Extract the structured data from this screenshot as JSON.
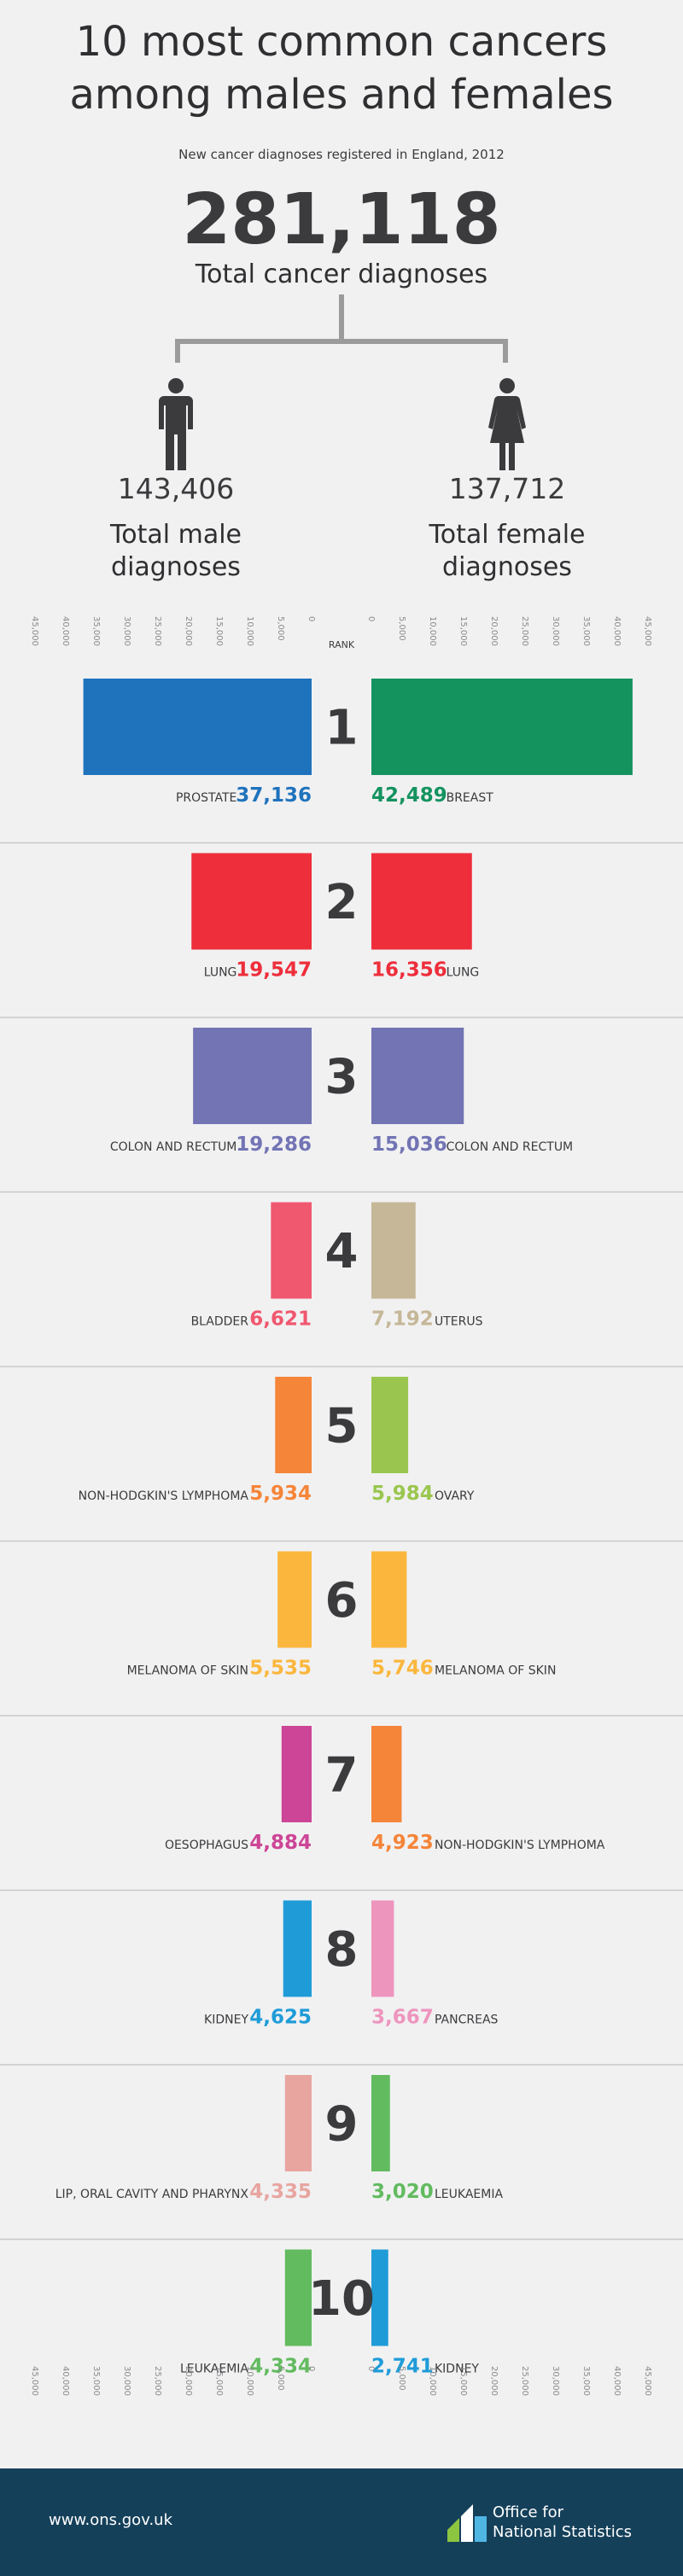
{
  "header": {
    "title_line1": "10 most common cancers",
    "title_line2": "among males and females",
    "subtitle": "New cancer diagnoses registered in England, 2012",
    "total_number": "281,118",
    "total_label": "Total cancer diagnoses"
  },
  "male": {
    "total_number": "143,406",
    "label_line1": "Total male",
    "label_line2": "diagnoses"
  },
  "female": {
    "total_number": "137,712",
    "label_line1": "Total female",
    "label_line2": "diagnoses"
  },
  "icons": {
    "male": "male-person-icon",
    "female": "female-person-icon",
    "logo": "ons-logo-icon"
  },
  "colors": {
    "background": "#f1f1f2",
    "text": "#3b3b3d",
    "footer": "#15405a"
  },
  "chart_data": {
    "type": "bar",
    "title": "",
    "rank_label": "RANK",
    "axis_ticks": [
      "0",
      "5,000",
      "10,000",
      "15,000",
      "20,000",
      "25,000",
      "30,000",
      "35,000",
      "40,000",
      "45,000"
    ],
    "axis_range": [
      0,
      45000
    ],
    "categories": [
      "1",
      "2",
      "3",
      "4",
      "5",
      "6",
      "7",
      "8",
      "9",
      "10"
    ],
    "series": [
      {
        "side": "male",
        "labels": [
          "PROSTATE",
          "LUNG",
          "COLON AND RECTUM",
          "BLADDER",
          "NON-HODGKIN'S LYMPHOMA",
          "MELANOMA OF SKIN",
          "OESOPHAGUS",
          "KIDNEY",
          "LIP, ORAL CAVITY AND PHARYNX",
          "LEUKAEMIA"
        ],
        "values": [
          37136,
          19547,
          19286,
          6621,
          5934,
          5535,
          4884,
          4625,
          4335,
          4334
        ],
        "value_labels": [
          "37,136",
          "19,547",
          "19,286",
          "6,621",
          "5,934",
          "5,535",
          "4,884",
          "4,625",
          "4,335",
          "4,334"
        ],
        "colors": [
          "#1f73bd",
          "#ee2e3b",
          "#7274b4",
          "#f0586f",
          "#f58539",
          "#fbb73d",
          "#cd4596",
          "#1f9cd8",
          "#e8a5a0",
          "#62bb5f"
        ]
      },
      {
        "side": "female",
        "labels": [
          "BREAST",
          "LUNG",
          "COLON AND RECTUM",
          "UTERUS",
          "OVARY",
          "MELANOMA OF SKIN",
          "NON-HODGKIN'S LYMPHOMA",
          "PANCREAS",
          "LEUKAEMIA",
          "KIDNEY"
        ],
        "values": [
          42489,
          16356,
          15036,
          7192,
          5984,
          5746,
          4923,
          3667,
          3020,
          2741
        ],
        "value_labels": [
          "42,489",
          "16,356",
          "15,036",
          "7,192",
          "5,984",
          "5,746",
          "4,923",
          "3,667",
          "3,020",
          "2,741"
        ],
        "colors": [
          "#14935f",
          "#ee2e3b",
          "#7274b4",
          "#c5b797",
          "#9ac64f",
          "#fbb73d",
          "#f58539",
          "#ee95bd",
          "#62bb5f",
          "#1f9cd8"
        ]
      }
    ]
  },
  "footer": {
    "url": "www.ons.gov.uk",
    "org_line1": "Office for",
    "org_line2": "National Statistics"
  }
}
